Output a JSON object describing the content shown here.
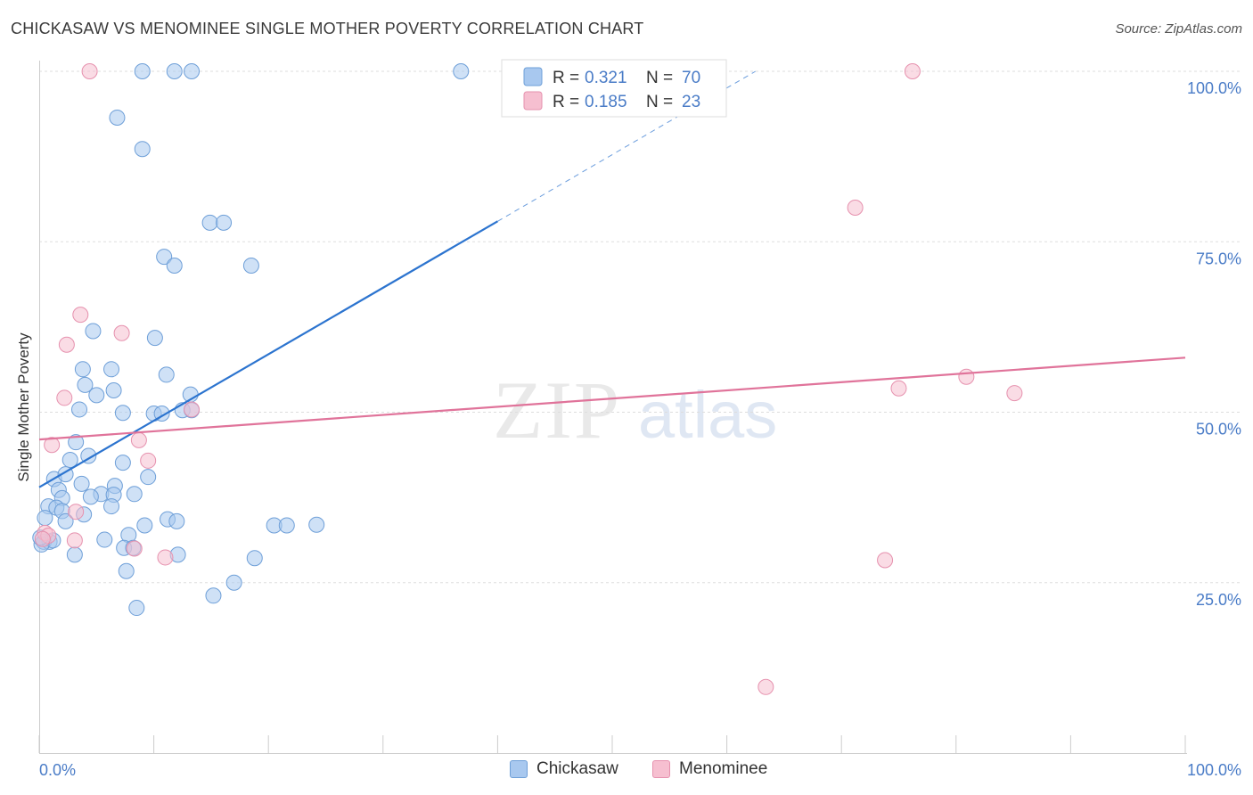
{
  "title": "CHICKASAW VS MENOMINEE SINGLE MOTHER POVERTY CORRELATION CHART",
  "source": "Source: ZipAtlas.com",
  "watermark": {
    "zip": "ZIP",
    "atlas": "atlas"
  },
  "colors": {
    "blue_fill": "#a8c8ef",
    "blue_stroke": "#6e9fd8",
    "blue_line": "#2c74cf",
    "pink_fill": "#f6bfd0",
    "pink_stroke": "#e691ae",
    "pink_line": "#e0739a",
    "tick_text": "#4a7cc7",
    "grid": "#dddddd"
  },
  "legend_top": [
    {
      "r_label": "R = ",
      "r_value": "0.321",
      "n_label": "N = ",
      "n_value": "70",
      "color": "blue"
    },
    {
      "r_label": "R = ",
      "r_value": "0.185",
      "n_label": "N = ",
      "n_value": "23",
      "color": "pink"
    }
  ],
  "legend_bottom": [
    {
      "label": "Chickasaw",
      "color": "blue"
    },
    {
      "label": "Menominee",
      "color": "pink"
    }
  ],
  "chart_data": {
    "type": "scatter",
    "title": "CHICKASAW VS MENOMINEE SINGLE MOTHER POVERTY CORRELATION CHART",
    "xlabel": "",
    "ylabel": "Single Mother Poverty",
    "xlim": [
      0,
      100
    ],
    "ylim": [
      0,
      100
    ],
    "x_tick_labels": [
      "0.0%",
      "100.0%"
    ],
    "y_tick_labels": [
      {
        "value": 25,
        "label": "25.0%"
      },
      {
        "value": 50,
        "label": "50.0%"
      },
      {
        "value": 75,
        "label": "75.0%"
      },
      {
        "value": 100,
        "label": "100.0%"
      }
    ],
    "grid": true,
    "legend_position": "top-center",
    "series": [
      {
        "name": "Chickasaw",
        "color": "blue",
        "R": 0.321,
        "N": 70,
        "trend": {
          "x0": 0,
          "y0": 39.0,
          "x1": 40,
          "y1": 78.0,
          "dashed_to_x": 62.5,
          "dashed_to_y": 100
        },
        "points": [
          [
            9.0,
            100
          ],
          [
            11.8,
            100
          ],
          [
            13.3,
            100
          ],
          [
            36.8,
            100
          ],
          [
            6.8,
            93.2
          ],
          [
            9.0,
            88.6
          ],
          [
            14.9,
            77.8
          ],
          [
            16.1,
            77.8
          ],
          [
            10.9,
            72.8
          ],
          [
            11.8,
            71.5
          ],
          [
            18.5,
            71.5
          ],
          [
            4.7,
            61.9
          ],
          [
            10.1,
            60.9
          ],
          [
            3.8,
            56.3
          ],
          [
            6.3,
            56.3
          ],
          [
            11.1,
            55.5
          ],
          [
            4.0,
            54.0
          ],
          [
            6.5,
            53.2
          ],
          [
            5.0,
            52.5
          ],
          [
            13.2,
            52.6
          ],
          [
            3.5,
            50.4
          ],
          [
            7.3,
            49.9
          ],
          [
            10.0,
            49.8
          ],
          [
            10.7,
            49.8
          ],
          [
            12.5,
            50.3
          ],
          [
            13.3,
            50.3
          ],
          [
            3.2,
            45.6
          ],
          [
            4.3,
            43.6
          ],
          [
            2.7,
            43.0
          ],
          [
            7.3,
            42.6
          ],
          [
            9.5,
            40.5
          ],
          [
            1.3,
            40.2
          ],
          [
            2.3,
            40.9
          ],
          [
            3.7,
            39.5
          ],
          [
            5.4,
            38.0
          ],
          [
            6.6,
            39.2
          ],
          [
            1.7,
            38.6
          ],
          [
            2.0,
            37.4
          ],
          [
            4.5,
            37.6
          ],
          [
            6.5,
            37.9
          ],
          [
            8.3,
            38.0
          ],
          [
            0.8,
            36.2
          ],
          [
            1.5,
            36.0
          ],
          [
            2.0,
            35.5
          ],
          [
            6.3,
            36.2
          ],
          [
            0.5,
            34.5
          ],
          [
            2.3,
            34.0
          ],
          [
            3.9,
            35.0
          ],
          [
            11.2,
            34.3
          ],
          [
            12.0,
            34.0
          ],
          [
            20.5,
            33.4
          ],
          [
            21.6,
            33.4
          ],
          [
            24.2,
            33.5
          ],
          [
            9.2,
            33.4
          ],
          [
            0.4,
            31.0
          ],
          [
            0.9,
            31.0
          ],
          [
            1.2,
            31.2
          ],
          [
            5.7,
            31.3
          ],
          [
            7.8,
            32.0
          ],
          [
            0.2,
            30.6
          ],
          [
            7.4,
            30.1
          ],
          [
            8.2,
            30.1
          ],
          [
            3.1,
            29.1
          ],
          [
            12.1,
            29.1
          ],
          [
            18.8,
            28.6
          ],
          [
            7.6,
            26.7
          ],
          [
            17.0,
            25.0
          ],
          [
            15.2,
            23.1
          ],
          [
            8.5,
            21.3
          ],
          [
            0.1,
            31.6
          ]
        ]
      },
      {
        "name": "Menominee",
        "color": "pink",
        "R": 0.185,
        "N": 23,
        "trend": {
          "x0": 0,
          "y0": 46.0,
          "x1": 100,
          "y1": 58.0
        },
        "points": [
          [
            4.4,
            100
          ],
          [
            76.2,
            100
          ],
          [
            71.2,
            80.0
          ],
          [
            3.6,
            64.3
          ],
          [
            7.2,
            61.6
          ],
          [
            2.4,
            59.9
          ],
          [
            80.9,
            55.2
          ],
          [
            75.0,
            53.5
          ],
          [
            85.1,
            52.8
          ],
          [
            2.2,
            52.1
          ],
          [
            13.3,
            50.4
          ],
          [
            8.7,
            45.9
          ],
          [
            1.1,
            45.2
          ],
          [
            9.5,
            42.9
          ],
          [
            3.2,
            35.4
          ],
          [
            0.5,
            32.3
          ],
          [
            0.8,
            31.9
          ],
          [
            3.1,
            31.2
          ],
          [
            8.3,
            30.0
          ],
          [
            11.0,
            28.7
          ],
          [
            73.8,
            28.3
          ],
          [
            63.4,
            9.7
          ],
          [
            0.3,
            31.4
          ]
        ]
      }
    ]
  }
}
